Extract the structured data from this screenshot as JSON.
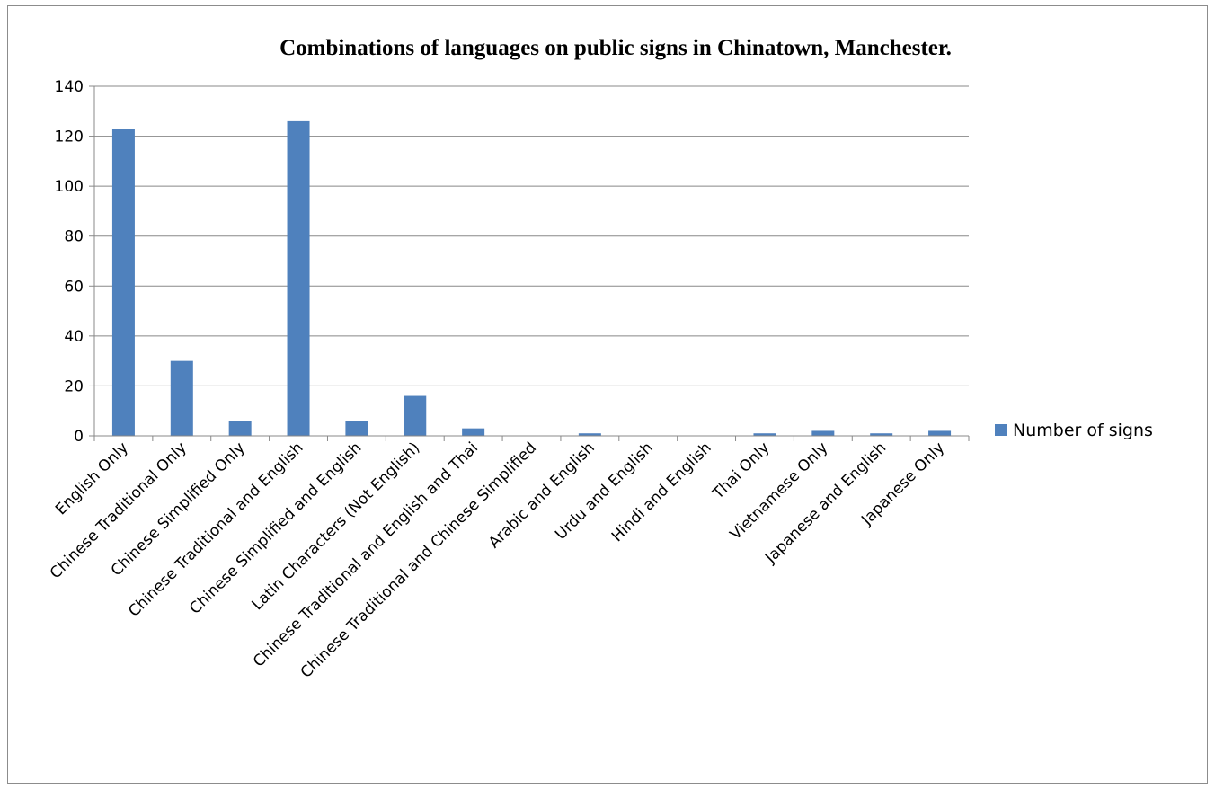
{
  "chart_data": {
    "type": "bar",
    "title": "Combinations of languages on public signs in Chinatown, Manchester.",
    "xlabel": "",
    "ylabel": "",
    "ylim": [
      0,
      140
    ],
    "y_ticks": [
      0,
      20,
      40,
      60,
      80,
      100,
      120,
      140
    ],
    "y_tick_labels": [
      "0",
      "20",
      "40",
      "60",
      "80",
      "100",
      "120",
      "140"
    ],
    "grid": true,
    "legend": "right",
    "bar_color": "#4f81bd",
    "categories": [
      "English Only",
      "Chinese Traditional Only",
      "Chinese Simplified Only",
      "Chinese Traditional and English",
      "Chinese Simplified and English",
      "Latin Characters (Not English)",
      "Chinese Traditional and English and Thai",
      "Chinese Traditional and Chinese Simplified",
      "Arabic and English",
      "Urdu and English",
      "Hindi and English",
      "Thai Only",
      "Vietnamese Only",
      "Japanese and English",
      "Japanese Only"
    ],
    "series": [
      {
        "name": "Number of signs",
        "values": [
          123,
          30,
          6,
          126,
          6,
          16,
          3,
          0,
          1,
          0,
          0,
          1,
          2,
          1,
          2
        ]
      }
    ]
  }
}
